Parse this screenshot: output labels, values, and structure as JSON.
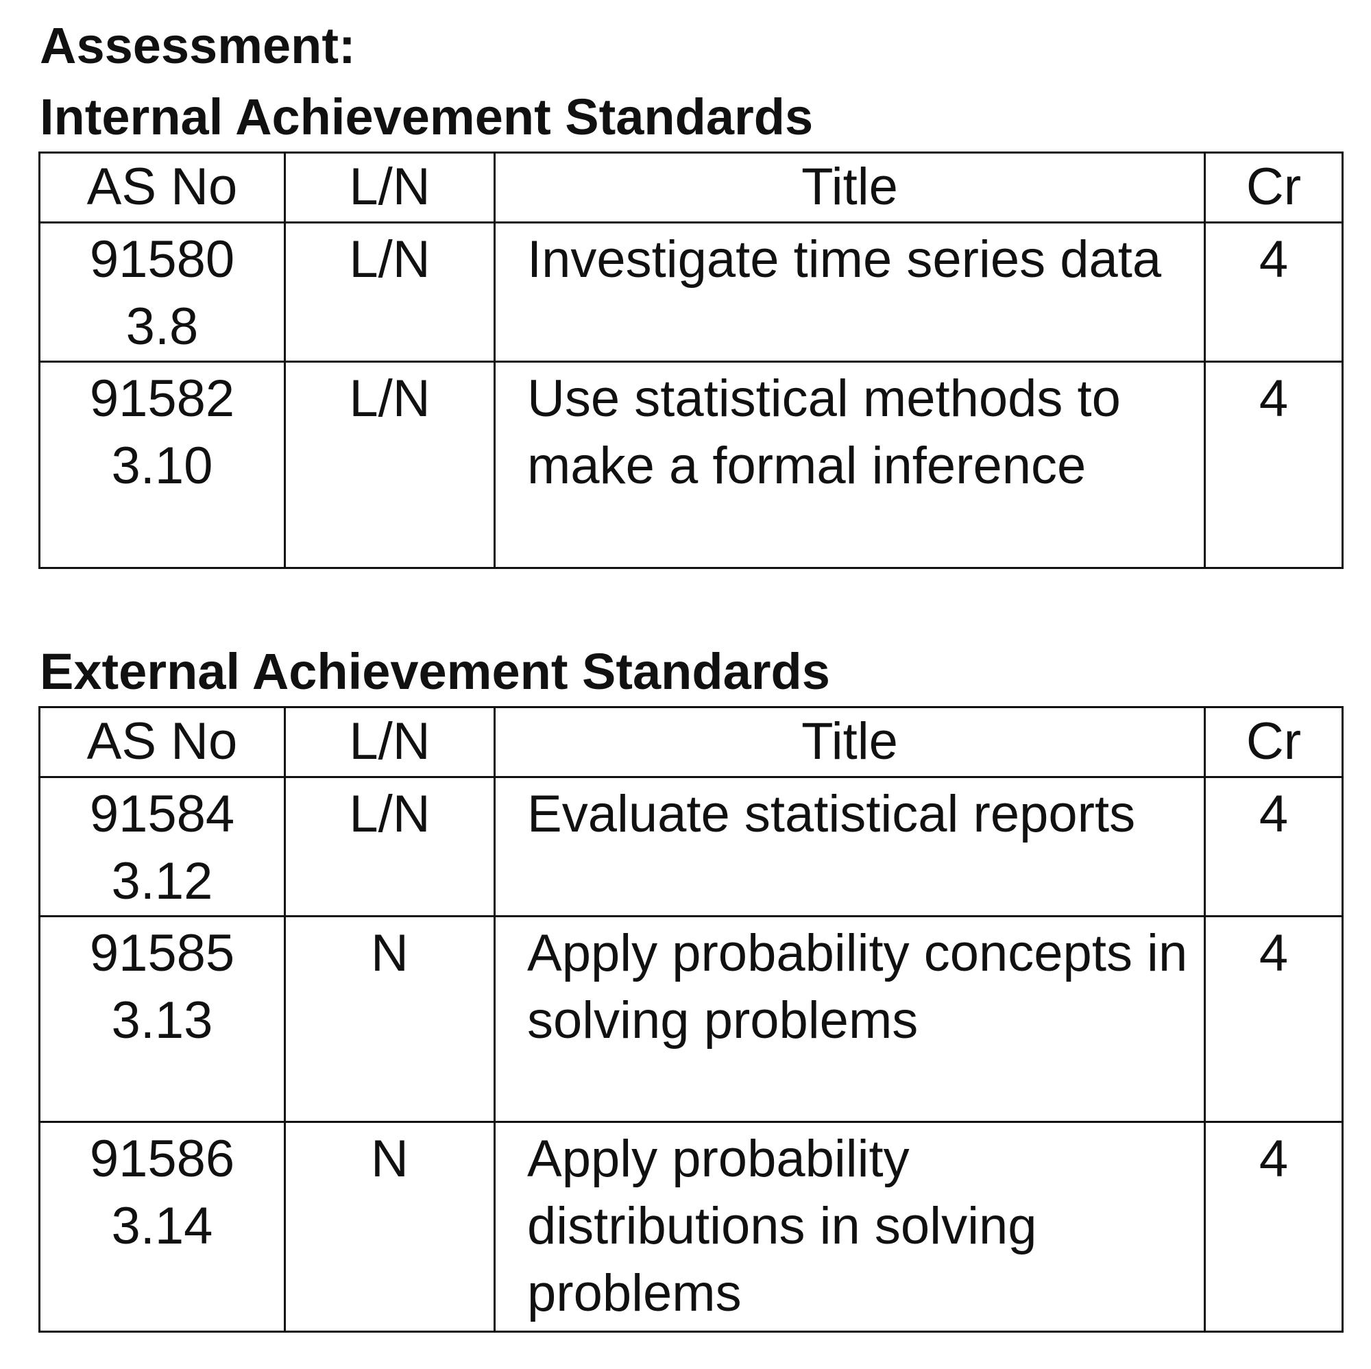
{
  "assessment_heading": "Assessment:",
  "internal": {
    "heading": "Internal Achievement Standards",
    "columns": [
      "AS No",
      "L/N",
      "Title",
      "Cr"
    ],
    "rows": [
      {
        "as_no": "91580",
        "ref": "3.8",
        "ln": "L/N",
        "title": "Investigate time series data",
        "cr": "4"
      },
      {
        "as_no": "91582",
        "ref": "3.10",
        "ln": "L/N",
        "title": "Use statistical methods to make a formal inference",
        "cr": "4"
      }
    ]
  },
  "external": {
    "heading": "External Achievement Standards",
    "columns": [
      "AS No",
      "L/N",
      "Title",
      "Cr"
    ],
    "rows": [
      {
        "as_no": "91584",
        "ref": "3.12",
        "ln": "L/N",
        "title": "Evaluate statistical reports",
        "cr": "4"
      },
      {
        "as_no": "91585",
        "ref": "3.13",
        "ln": "N",
        "title": "Apply probability concepts in solving problems",
        "cr": "4"
      },
      {
        "as_no": "91586",
        "ref": "3.14",
        "ln": "N",
        "title": "Apply probability distributions in solving problems",
        "cr": "4"
      }
    ]
  }
}
